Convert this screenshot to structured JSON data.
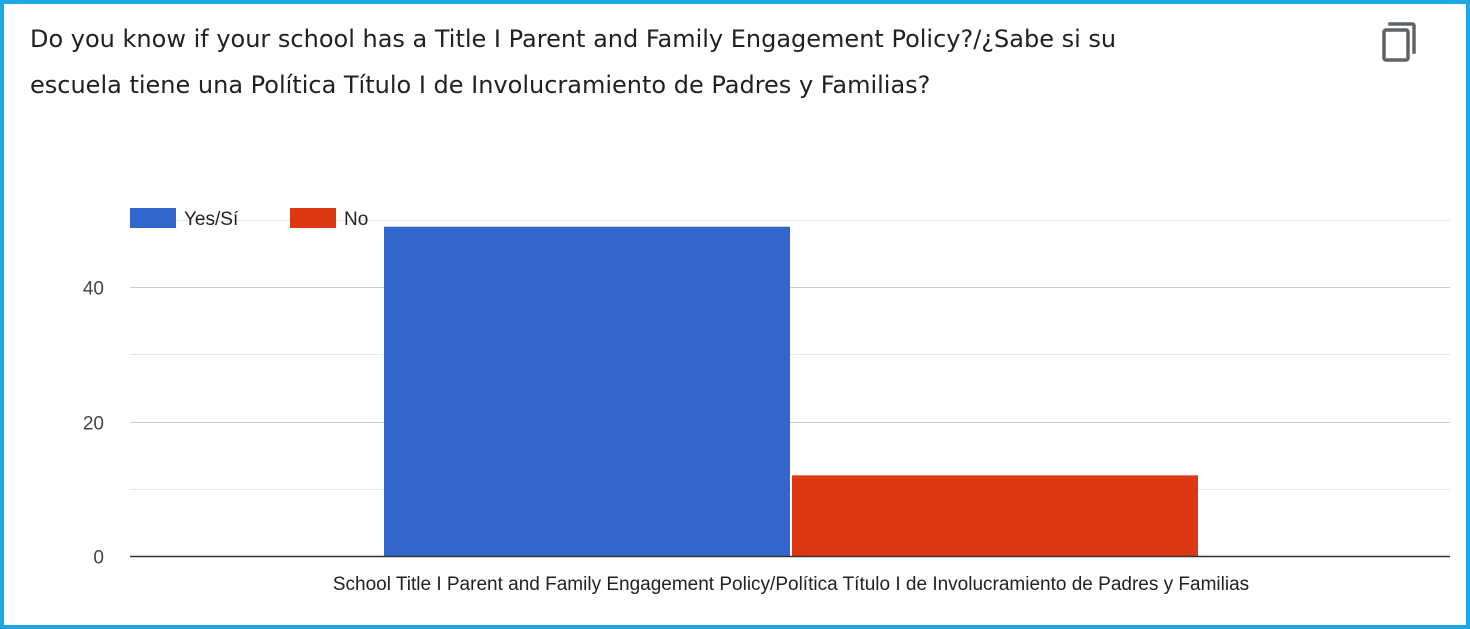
{
  "question": {
    "title_line1": "Do you know if your school has a Title I Parent and Family Engagement Policy?/¿Sabe si su",
    "title_line2": "escuela tiene una Política Título I de Involucramiento de Padres y Familias?"
  },
  "toolbar": {
    "copy_icon": "copy-icon"
  },
  "chart_data": {
    "type": "bar",
    "categories": [
      "School Title I Parent and Family Engagement Policy/Política Título I de Involucramiento de Padres y Familias"
    ],
    "series": [
      {
        "name": "Yes/Sí",
        "values": [
          49
        ],
        "color": "#3366cc"
      },
      {
        "name": "No",
        "values": [
          12
        ],
        "color": "#dc3912"
      }
    ],
    "title": "",
    "xlabel": "",
    "ylabel": "",
    "ylim": [
      0,
      50
    ],
    "yticks": [
      0,
      20,
      40
    ],
    "minor_gridlines": [
      10,
      30,
      50
    ],
    "grid": true,
    "legend": "top-left"
  }
}
